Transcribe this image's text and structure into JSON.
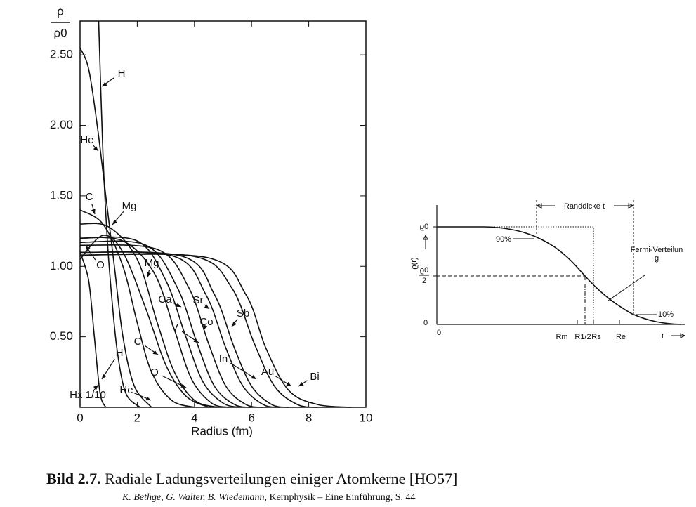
{
  "chart_data": {
    "type": "line",
    "color": "#111111",
    "ylabel_top": "ρ",
    "ylabel_bottom": "ρ0",
    "xlabel": "Radius (fm)",
    "xlim": [
      0,
      10
    ],
    "xticks": [
      0,
      2,
      4,
      6,
      8,
      10
    ],
    "ylim": [
      0,
      2.74
    ],
    "yticks": [
      {
        "value": 0.5,
        "label": "0.50"
      },
      {
        "value": 1,
        "label": "1.00"
      },
      {
        "value": 1.5,
        "label": "1.50"
      },
      {
        "value": 2,
        "label": "2.00"
      },
      {
        "value": 2.5,
        "label": "2.50"
      }
    ],
    "series": [
      {
        "name": "Hx 1/10",
        "x": [
          0,
          0.3,
          0.5,
          0.7,
          0.9
        ],
        "values": [
          1.1,
          0.9,
          0.5,
          0.1,
          0
        ]
      },
      {
        "name": "H",
        "x": [
          0.65,
          0.8,
          0.95,
          1.1,
          1.3,
          1.6,
          2.1
        ],
        "values": [
          2.74,
          1.8,
          1.2,
          0.8,
          0.4,
          0.1,
          0
        ]
      },
      {
        "name": "He",
        "x": [
          0,
          0.3,
          0.6,
          0.9,
          1.2,
          1.5,
          1.9,
          2.5
        ],
        "values": [
          2.55,
          2.4,
          2.0,
          1.5,
          1.0,
          0.5,
          0.15,
          0
        ]
      },
      {
        "name": "C",
        "x": [
          0,
          0.8,
          1.5,
          2.0,
          2.5,
          3.2,
          4.0
        ],
        "values": [
          1.4,
          1.3,
          1.0,
          0.6,
          0.25,
          0.05,
          0
        ]
      },
      {
        "name": "O",
        "x": [
          0,
          0.8,
          1.5,
          2.3,
          3.0,
          3.7,
          4.5
        ],
        "values": [
          1.05,
          1.22,
          1.1,
          0.7,
          0.3,
          0.08,
          0
        ]
      },
      {
        "name": "Mg",
        "x": [
          0,
          1,
          2,
          2.7,
          3.3,
          4,
          4.8
        ],
        "values": [
          1.3,
          1.28,
          1.05,
          0.6,
          0.25,
          0.05,
          0
        ]
      },
      {
        "name": "Ca",
        "x": [
          0,
          1.5,
          2.6,
          3.3,
          3.9,
          4.6,
          5.2
        ],
        "values": [
          1.2,
          1.18,
          0.95,
          0.55,
          0.2,
          0.03,
          0
        ]
      },
      {
        "name": "V",
        "x": [
          0,
          2,
          3,
          3.7,
          4.3,
          5,
          5.6
        ],
        "values": [
          1.2,
          1.18,
          0.9,
          0.5,
          0.18,
          0.03,
          0
        ]
      },
      {
        "name": "Co",
        "x": [
          0,
          2.3,
          3.4,
          4.1,
          4.7,
          5.4,
          6
        ],
        "values": [
          1.17,
          1.15,
          0.85,
          0.45,
          0.15,
          0.02,
          0
        ]
      },
      {
        "name": "Sr",
        "x": [
          0,
          2.7,
          3.8,
          4.5,
          5.1,
          5.8,
          6.4
        ],
        "values": [
          1.15,
          1.12,
          0.85,
          0.45,
          0.15,
          0.02,
          0
        ]
      },
      {
        "name": "In",
        "x": [
          0,
          3.3,
          4.4,
          5.1,
          5.7,
          6.4,
          7
        ],
        "values": [
          1.1,
          1.07,
          0.8,
          0.42,
          0.15,
          0.02,
          0
        ]
      },
      {
        "name": "Sb",
        "x": [
          0,
          3.6,
          4.7,
          5.4,
          6,
          6.7,
          7.3
        ],
        "values": [
          1.1,
          1.07,
          0.8,
          0.42,
          0.15,
          0.02,
          0
        ]
      },
      {
        "name": "Au",
        "x": [
          0,
          4,
          5.3,
          6.1,
          6.8,
          7.6,
          8.3
        ],
        "values": [
          1.08,
          1.07,
          0.85,
          0.45,
          0.15,
          0.02,
          0
        ]
      },
      {
        "name": "Bi",
        "x": [
          0,
          4.5,
          5.8,
          6.5,
          7.3,
          8.3,
          9.5
        ],
        "values": [
          1.08,
          1.06,
          0.8,
          0.42,
          0.12,
          0.02,
          0
        ]
      }
    ]
  },
  "figure_right": {
    "ylabel": "ϱ(r)",
    "y_top": "ϱ0",
    "y_half_num": "ϱ0",
    "y_half_den": "2",
    "y_zero": "0",
    "x_zero": "0",
    "x_labels": [
      "Rm",
      "R1/2",
      "Rs",
      "Re"
    ],
    "x_axis": "r",
    "thickness": "Randdicke t",
    "fermi": "Fermi-Verteilung",
    "p90": "90%",
    "p10": "10%"
  },
  "caption": {
    "label": "Bild 2.7.",
    "text": "Radiale Ladungsverteilungen einiger Atomkerne [HO57]"
  },
  "source": {
    "authors": "K. Bethge, G. Walter, B. Wiedemann,",
    "title": "Kernphysik – Eine Einführung, S. 44"
  }
}
